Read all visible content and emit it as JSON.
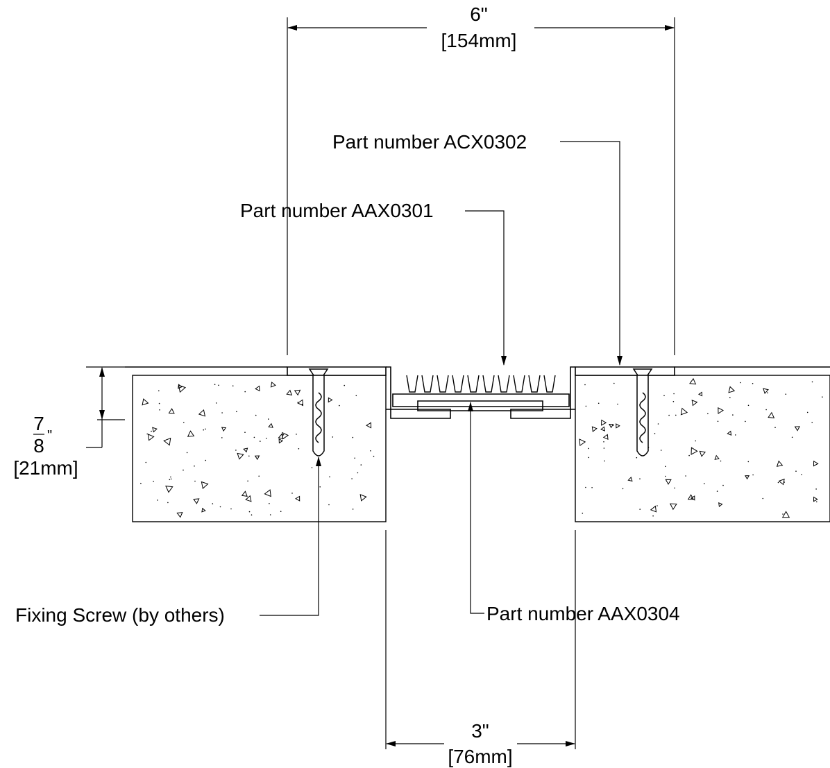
{
  "dimensions": {
    "overall_width": {
      "imperial": "6\"",
      "metric": "[154mm]"
    },
    "gap_width": {
      "imperial": "3\"",
      "metric": "[76mm]"
    },
    "depth": {
      "numerator": "7",
      "denominator": "8",
      "inch_mark": "\"",
      "metric": "[21mm]"
    }
  },
  "callouts": {
    "cover": "Part number ACX0302",
    "frame": "Part number AAX0301",
    "base": "Part number AAX0304",
    "screw": "Fixing Screw (by others)"
  }
}
